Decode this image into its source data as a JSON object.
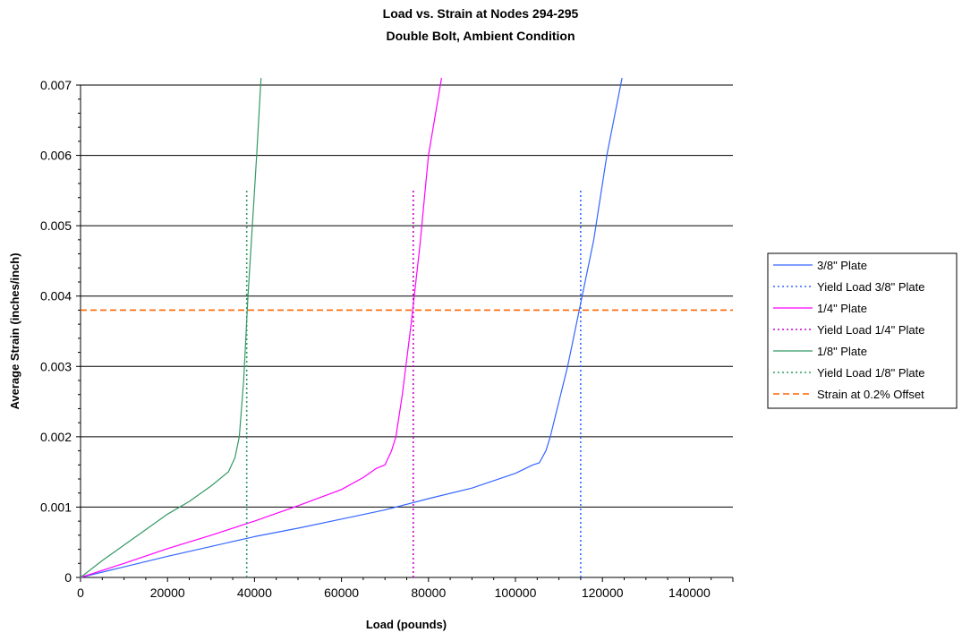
{
  "chart_data": {
    "type": "line",
    "title": "Load vs. Strain at Nodes 294-295",
    "subtitle": "Double Bolt, Ambient Condition",
    "xlabel": "Load (pounds)",
    "ylabel": "Average Strain (inches/inch)",
    "xlim": [
      0,
      150000
    ],
    "ylim": [
      0,
      0.007
    ],
    "x_ticks": [
      "0",
      "20000",
      "40000",
      "60000",
      "80000",
      "100000",
      "120000",
      "140000"
    ],
    "x_tick_values": [
      0,
      20000,
      40000,
      60000,
      80000,
      100000,
      120000,
      140000
    ],
    "y_ticks": [
      "0",
      "0.001",
      "0.002",
      "0.003",
      "0.004",
      "0.005",
      "0.006",
      "0.007"
    ],
    "y_tick_values": [
      0,
      0.001,
      0.002,
      0.003,
      0.004,
      0.005,
      0.006,
      0.007
    ],
    "grid": "horizontal",
    "legend_position": "right",
    "series": [
      {
        "name": "3/8\" Plate",
        "style": "solid",
        "color": "#3366ff",
        "x": [
          0,
          10000,
          20000,
          30000,
          40000,
          50000,
          60000,
          70000,
          80000,
          90000,
          100000,
          104000,
          105500,
          107000,
          108000,
          110000,
          112000,
          115000,
          118000,
          121000,
          124500
        ],
        "y": [
          0,
          0.00015,
          0.0003,
          0.00044,
          0.00058,
          0.0007,
          0.00083,
          0.00096,
          0.00112,
          0.00127,
          0.00148,
          0.0016,
          0.00163,
          0.0018,
          0.002,
          0.0025,
          0.003,
          0.0039,
          0.0048,
          0.006,
          0.0071
        ]
      },
      {
        "name": "Yield Load 3/8\" Plate",
        "style": "dotted",
        "color": "#3366ff",
        "x": [
          115000,
          115000
        ],
        "y": [
          0,
          0.0055
        ]
      },
      {
        "name": "1/4\" Plate",
        "style": "solid",
        "color": "#ff00ff",
        "x": [
          0,
          10000,
          20000,
          30000,
          40000,
          50000,
          60000,
          65000,
          68000,
          70000,
          71500,
          72500,
          74000,
          76000,
          78000,
          80000,
          83000
        ],
        "y": [
          0,
          0.0002,
          0.00041,
          0.0006,
          0.0008,
          0.00102,
          0.00125,
          0.00142,
          0.00155,
          0.0016,
          0.0018,
          0.002,
          0.0026,
          0.0036,
          0.0047,
          0.006,
          0.0071
        ]
      },
      {
        "name": "Yield Load 1/4\" Plate",
        "style": "dotted",
        "color": "#cc00cc",
        "x": [
          76500,
          76500
        ],
        "y": [
          0,
          0.0055
        ]
      },
      {
        "name": "1/8\" Plate",
        "style": "solid",
        "color": "#339966",
        "x": [
          0,
          5000,
          10000,
          15000,
          20000,
          25000,
          30000,
          34000,
          35500,
          36500,
          37500,
          38500,
          39500,
          40500,
          41500
        ],
        "y": [
          0,
          0.00024,
          0.00046,
          0.00068,
          0.0009,
          0.00108,
          0.0013,
          0.0015,
          0.0017,
          0.002,
          0.0028,
          0.004,
          0.005,
          0.006,
          0.0071
        ]
      },
      {
        "name": "Yield Load 1/8\" Plate",
        "style": "dotted",
        "color": "#339966",
        "x": [
          38200,
          38200
        ],
        "y": [
          0,
          0.0055
        ]
      },
      {
        "name": "Strain at 0.2% Offset",
        "style": "dashed",
        "color": "#ff6600",
        "x": [
          0,
          150000
        ],
        "y": [
          0.0038,
          0.0038
        ]
      }
    ]
  }
}
